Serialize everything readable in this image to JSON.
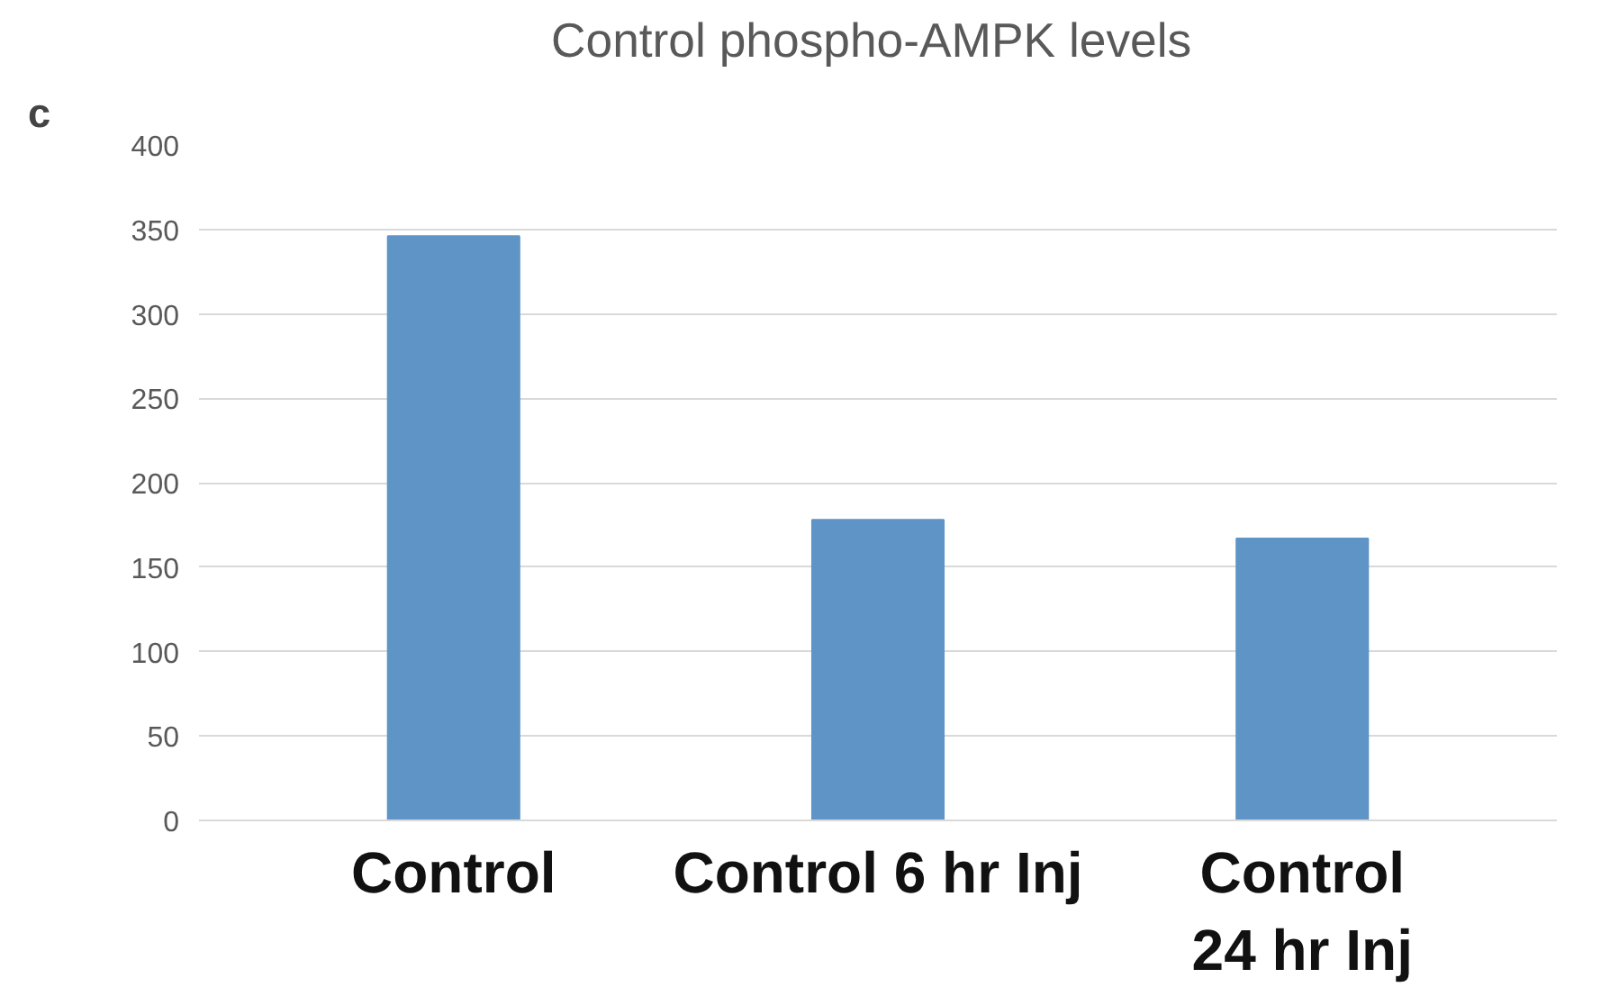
{
  "chart_data": {
    "type": "bar",
    "title": "Control phospho-AMPK  levels",
    "categories": [
      "Control",
      "Control 6 hr Inj",
      "Control\n24 hr Inj"
    ],
    "values": [
      346,
      178,
      167
    ],
    "color": "#5f95c6",
    "ylim": [
      0,
      400
    ],
    "yticks": [
      0,
      50,
      100,
      150,
      200,
      250,
      300,
      350,
      400
    ],
    "grid": "y",
    "annotations": [
      "c"
    ]
  }
}
